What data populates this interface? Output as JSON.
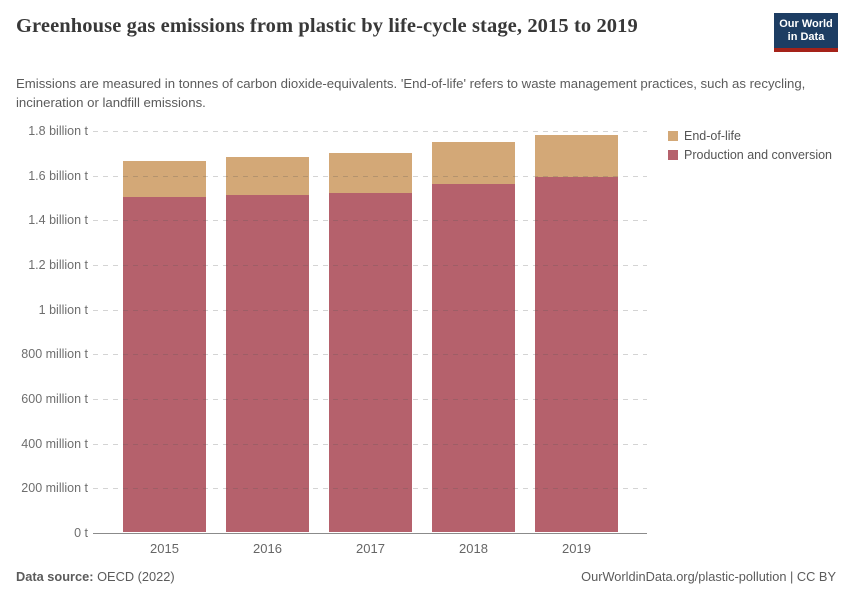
{
  "header": {
    "title": "Greenhouse gas emissions from plastic by life-cycle stage, 2015 to 2019",
    "subtitle": "Emissions are measured in tonnes of carbon dioxide-equivalents. 'End-of-life' refers to waste management practices, such as recycling, incineration or landfill emissions.",
    "logo": {
      "line1": "Our World",
      "line2": "in Data"
    }
  },
  "chart_data": {
    "type": "bar",
    "stacked": true,
    "title": "Greenhouse gas emissions from plastic by life-cycle stage, 2015 to 2019",
    "unit": "tonnes of carbon dioxide-equivalents",
    "categories": [
      "2015",
      "2016",
      "2017",
      "2018",
      "2019"
    ],
    "series": [
      {
        "name": "End-of-life",
        "color": "#d3a877",
        "values_billion_t": [
          0.16,
          0.17,
          0.18,
          0.19,
          0.19
        ]
      },
      {
        "name": "Production and conversion",
        "color": "#b5616c",
        "values_billion_t": [
          1.5,
          1.51,
          1.52,
          1.56,
          1.59
        ]
      }
    ],
    "ylim_billion_t": [
      0,
      1.8
    ],
    "y_tick_labels_bottom_up": [
      "0 t",
      "200 million t",
      "400 million t",
      "600 million t",
      "800 million t",
      "1 billion t",
      "1.2 billion t",
      "1.4 billion t",
      "1.6 billion t",
      "1.8 billion t"
    ],
    "grid": "dashed horizontal, drawn over bars",
    "legend_position": "top-right"
  },
  "footer": {
    "source_label": "Data source:",
    "source_value": " OECD (2022)",
    "attribution": "OurWorldinData.org/plastic-pollution | CC BY"
  }
}
